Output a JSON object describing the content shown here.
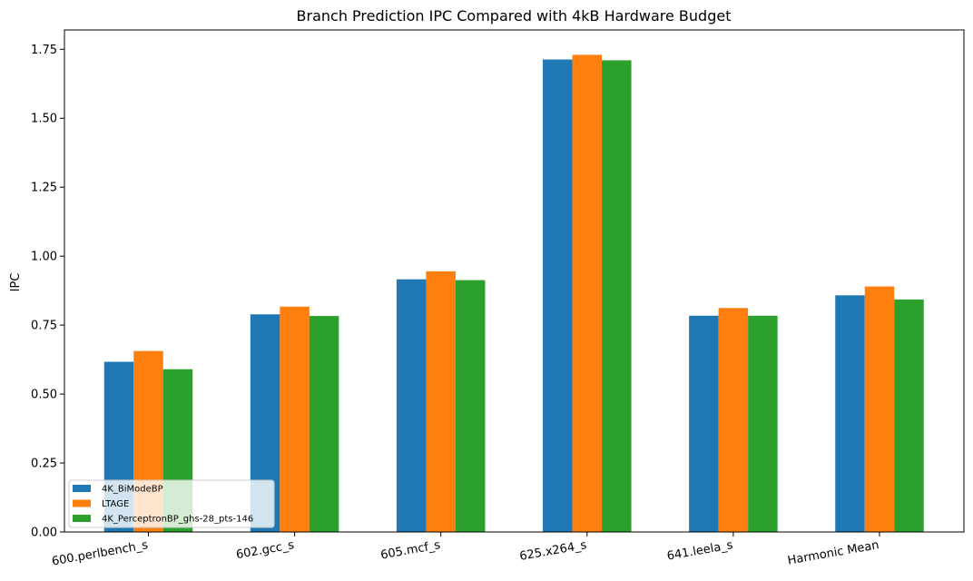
{
  "chart_data": {
    "type": "bar",
    "title": "Branch Prediction IPC Compared with 4kB Hardware Budget",
    "xlabel": "",
    "ylabel": "IPC",
    "categories": [
      "600.perlbench_s",
      "602.gcc_s",
      "605.mcf_s",
      "625.x264_s",
      "641.leela_s",
      "Harmonic Mean"
    ],
    "series": [
      {
        "name": "4K_BiModeBP",
        "color": "#1f77b4",
        "values": [
          0.617,
          0.789,
          0.916,
          1.713,
          0.784,
          0.858
        ]
      },
      {
        "name": "LTAGE",
        "color": "#ff7f0e",
        "values": [
          0.656,
          0.817,
          0.945,
          1.73,
          0.812,
          0.89
        ]
      },
      {
        "name": "4K_PerceptronBP_ghs-28_pts-146",
        "color": "#2ca02c",
        "values": [
          0.59,
          0.783,
          0.913,
          1.71,
          0.784,
          0.843
        ]
      }
    ],
    "ylim": [
      0,
      1.82
    ],
    "yticks": [
      "0.00",
      "0.25",
      "0.50",
      "0.75",
      "1.00",
      "1.25",
      "1.50",
      "1.75"
    ],
    "legend_position": "lower-left",
    "grid": false
  }
}
